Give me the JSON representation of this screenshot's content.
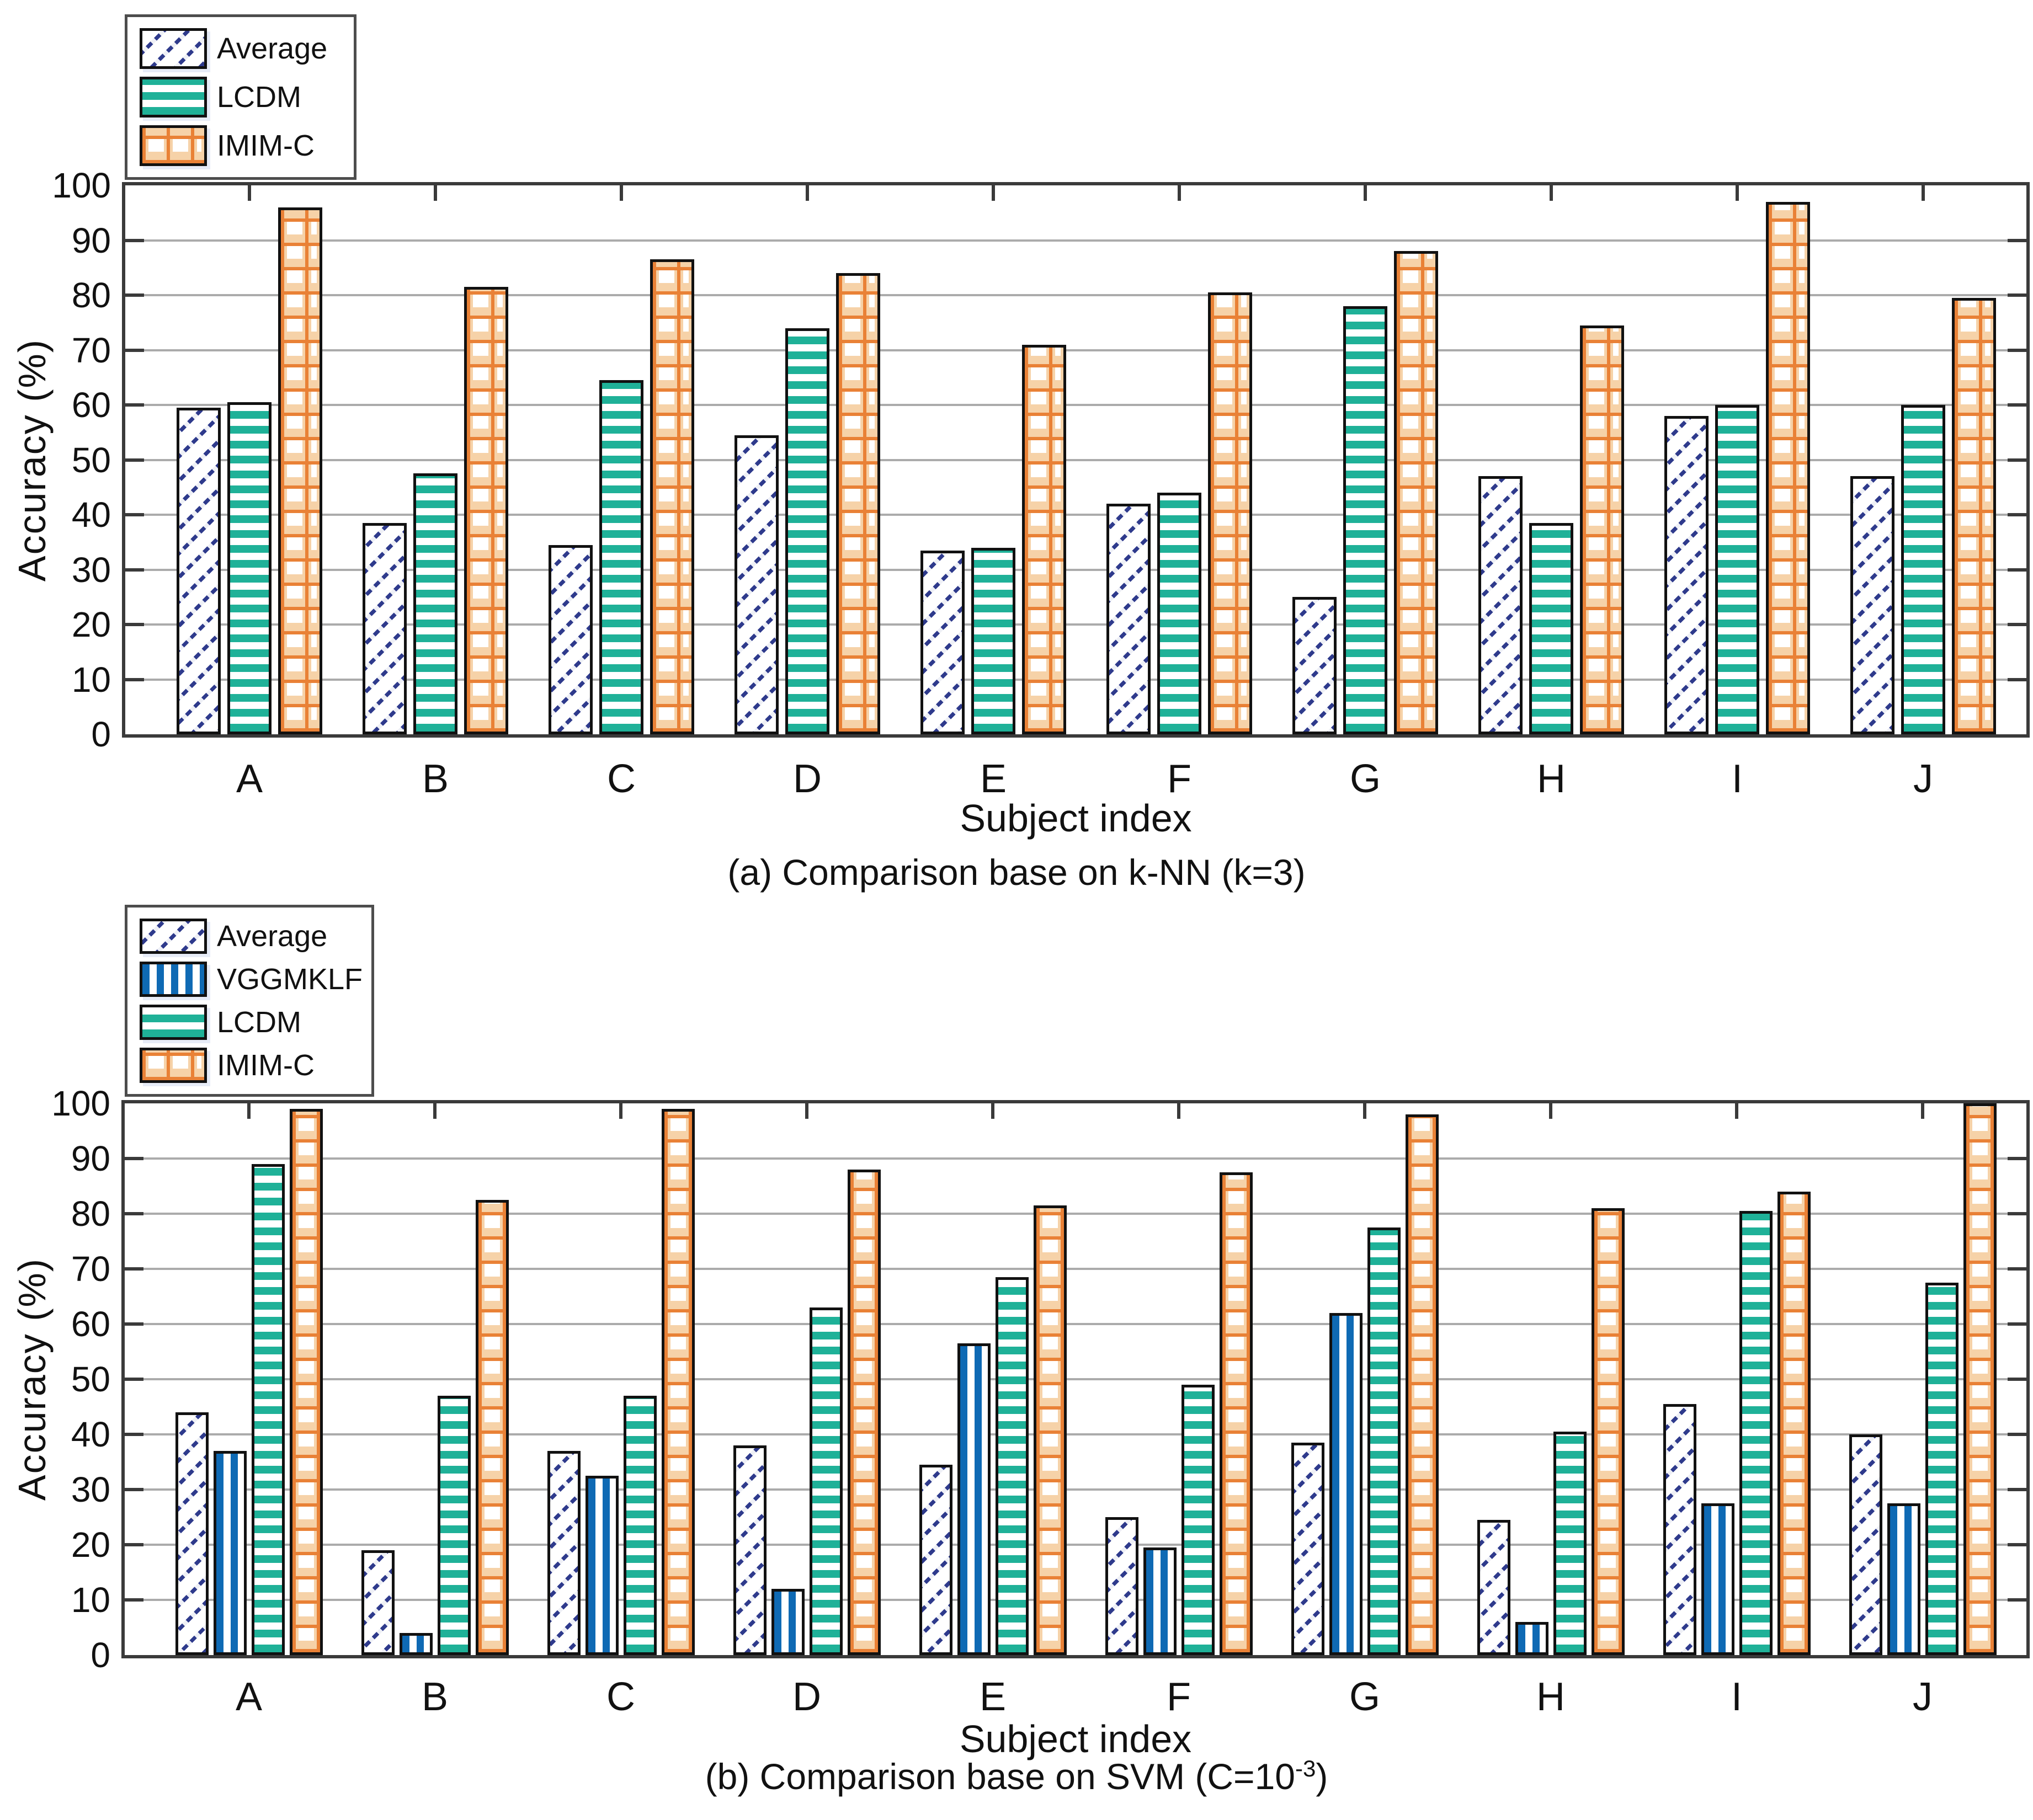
{
  "figure": {
    "background": "#ffffff",
    "axis_color": "#3a3a3a",
    "grid_color": "#ababab",
    "text_color": "#111111"
  },
  "chart_data": [
    {
      "type": "bar",
      "title": "(a) Comparison base on k-NN (k=3)",
      "caption": "(a) Comparison base on k-NN (k=3)",
      "xlabel": "Subject index",
      "ylabel": "Accuracy (%)",
      "ylim": [
        0,
        100
      ],
      "yticks": [
        0,
        10,
        20,
        30,
        40,
        50,
        60,
        70,
        80,
        90,
        100
      ],
      "grid": true,
      "legend_position": "top-left-outside",
      "categories": [
        "A",
        "B",
        "C",
        "D",
        "E",
        "F",
        "G",
        "H",
        "I",
        "J"
      ],
      "series": [
        {
          "name": "Average",
          "pattern": "diagonal-hatch",
          "color": "#2e3a8c",
          "values": [
            59.5,
            38.5,
            34.5,
            54.5,
            33.5,
            42,
            25,
            47,
            58,
            47
          ]
        },
        {
          "name": "LCDM",
          "pattern": "horizontal-stripes",
          "color": "#1fb198",
          "values": [
            60.5,
            47.5,
            64.5,
            74,
            34,
            44,
            78,
            38.5,
            60,
            60
          ]
        },
        {
          "name": "IMIM-C",
          "pattern": "grid",
          "color": "#e98136",
          "values": [
            96,
            81.5,
            86.5,
            84,
            71,
            80.5,
            88,
            74.5,
            97,
            79.5
          ]
        }
      ]
    },
    {
      "type": "bar",
      "title": "(b) Comparison base on SVM (C=10^-3)",
      "caption_parts": {
        "prefix": "(b) Comparison base on SVM (C=10",
        "sup": "-3",
        "suffix": ")"
      },
      "xlabel": "Subject index",
      "ylabel": "Accuracy (%)",
      "ylim": [
        0,
        100
      ],
      "yticks": [
        0,
        10,
        20,
        30,
        40,
        50,
        60,
        70,
        80,
        90,
        100
      ],
      "grid": true,
      "legend_position": "top-left-outside",
      "categories": [
        "A",
        "B",
        "C",
        "D",
        "E",
        "F",
        "G",
        "H",
        "I",
        "J"
      ],
      "series": [
        {
          "name": "Average",
          "pattern": "diagonal-hatch",
          "color": "#2e3a8c",
          "values": [
            44,
            19,
            37,
            38,
            34.5,
            25,
            38.5,
            24.5,
            45.5,
            40
          ]
        },
        {
          "name": "VGGMKLF",
          "pattern": "vertical-stripes",
          "color": "#0f6ab4",
          "values": [
            37,
            4,
            32.5,
            12,
            56.5,
            19.5,
            62,
            6,
            27.5,
            27.5
          ]
        },
        {
          "name": "LCDM",
          "pattern": "horizontal-stripes",
          "color": "#1fb198",
          "values": [
            89,
            47,
            47,
            63,
            68.5,
            49,
            77.5,
            40.5,
            80.5,
            67.5
          ]
        },
        {
          "name": "IMIM-C",
          "pattern": "grid",
          "color": "#e98136",
          "values": [
            99,
            82.5,
            99,
            88,
            81.5,
            87.5,
            98,
            81,
            84,
            100
          ]
        }
      ]
    }
  ]
}
